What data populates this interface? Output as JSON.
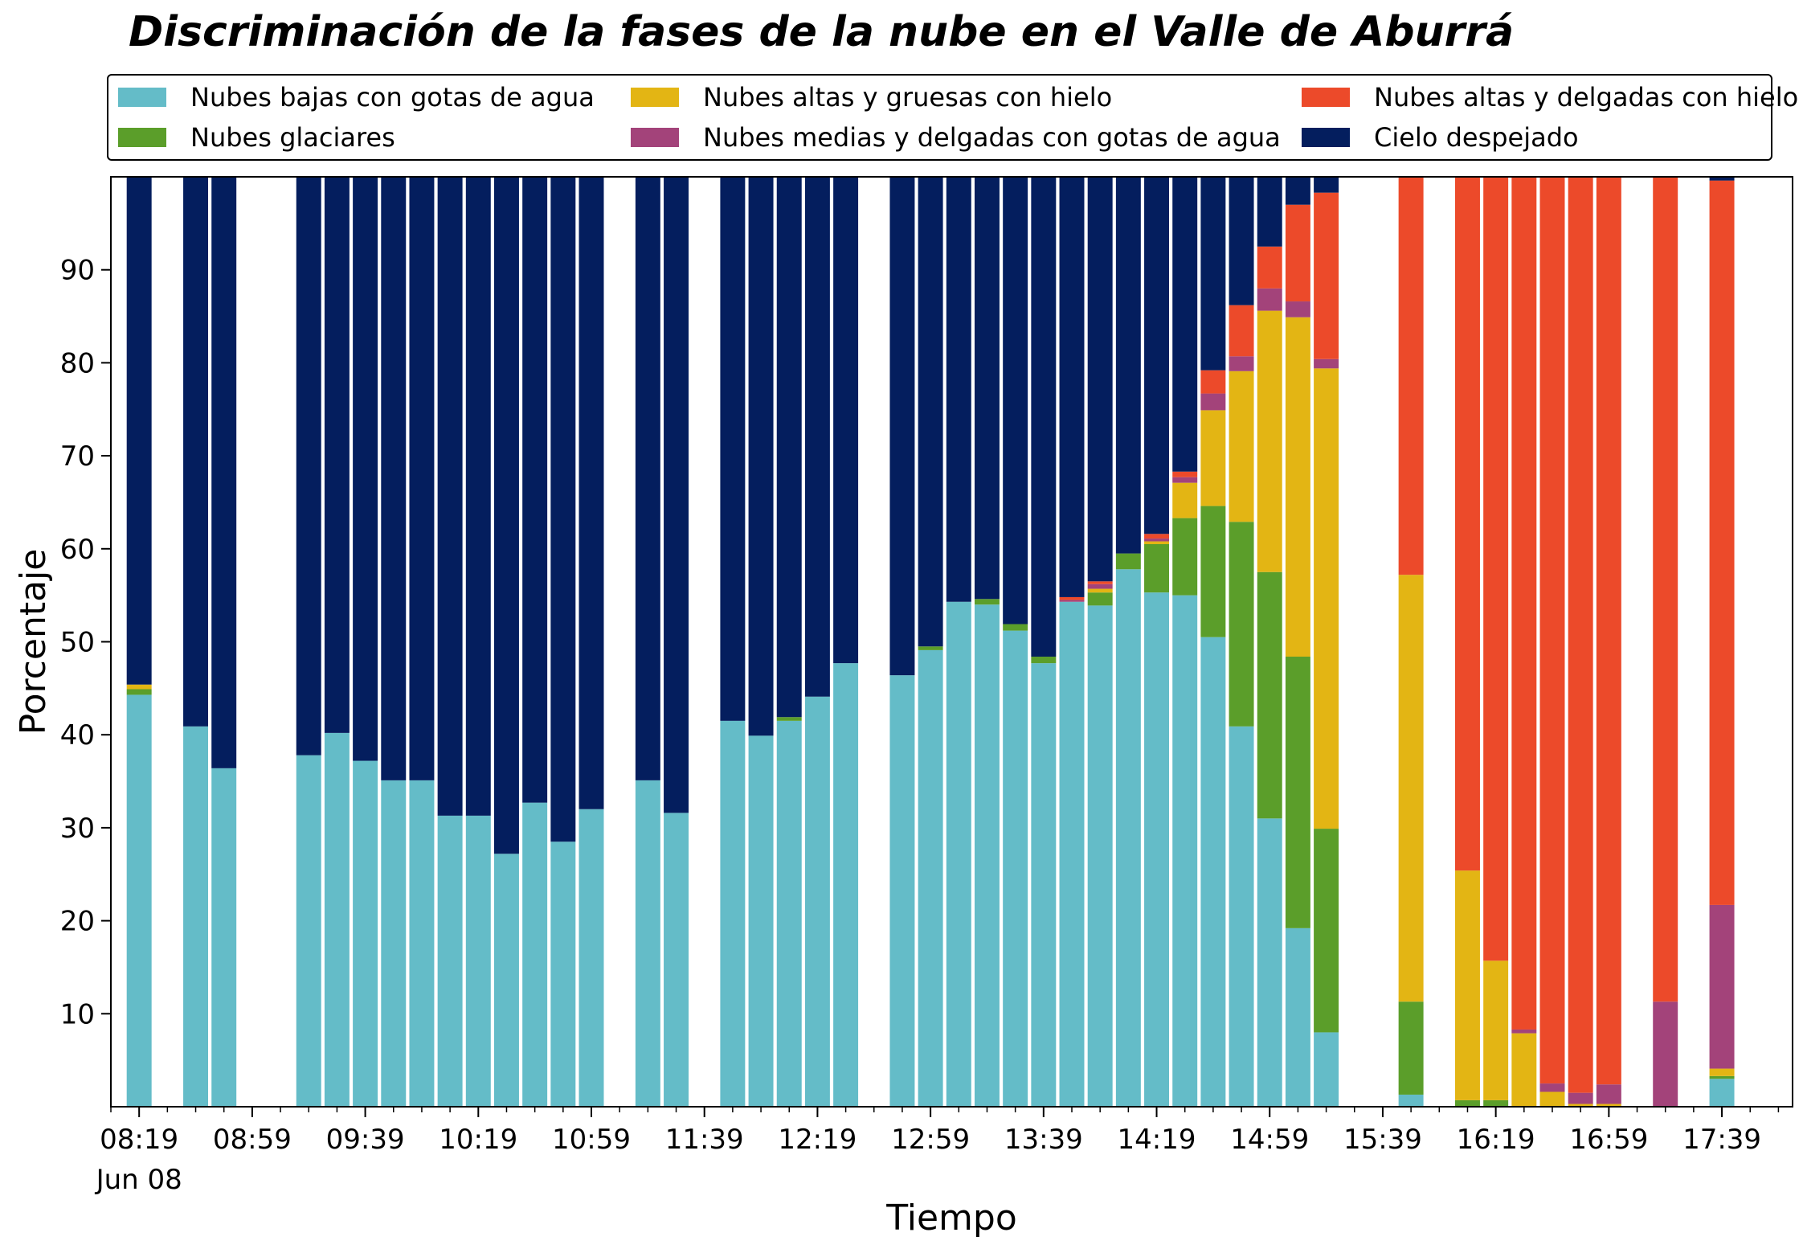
{
  "chart_data": {
    "type": "bar",
    "stacked": true,
    "title": "Discriminación de la fases de la nube en el Valle de Aburrá",
    "xlabel": "Tiempo",
    "ylabel": "Porcentaje",
    "ylim": [
      0,
      100
    ],
    "yticks": [
      10,
      20,
      30,
      40,
      50,
      60,
      70,
      80,
      90
    ],
    "xticks": [
      "08:19",
      "08:59",
      "09:39",
      "10:19",
      "10:59",
      "11:39",
      "12:19",
      "12:59",
      "13:39",
      "14:19",
      "14:59",
      "15:39",
      "16:19",
      "16:59",
      "17:39"
    ],
    "xtick_sublabel": "Jun 08",
    "x_start": "08:19",
    "x_end": "17:59",
    "x_interval_minutes": 10,
    "legend_position": "top",
    "grid": false,
    "series": [
      {
        "name": "Nubes bajas con gotas de agua",
        "color": "#64bcc8"
      },
      {
        "name": "Nubes glaciares",
        "color": "#5b9e2a"
      },
      {
        "name": "Nubes altas y gruesas con hielo",
        "color": "#e3b514"
      },
      {
        "name": "Nubes medias y delgadas con gotas de agua",
        "color": "#a3437a"
      },
      {
        "name": "Nubes altas y delgadas con hielo",
        "color": "#ec4a2a"
      },
      {
        "name": "Cielo despejado",
        "color": "#041e5e"
      }
    ],
    "bars": [
      {
        "x": "08:19",
        "values": [
          44.3,
          0.6,
          0.5,
          0,
          0,
          54.6
        ]
      },
      {
        "x": "08:39",
        "values": [
          40.9,
          0,
          0,
          0,
          0,
          59.1
        ]
      },
      {
        "x": "08:49",
        "values": [
          36.4,
          0,
          0,
          0,
          0,
          63.6
        ]
      },
      {
        "x": "09:19",
        "values": [
          37.8,
          0,
          0,
          0,
          0,
          62.2
        ]
      },
      {
        "x": "09:29",
        "values": [
          40.2,
          0,
          0,
          0,
          0,
          59.8
        ]
      },
      {
        "x": "09:39",
        "values": [
          37.2,
          0,
          0,
          0,
          0,
          62.8
        ]
      },
      {
        "x": "09:49",
        "values": [
          35.1,
          0,
          0,
          0,
          0,
          64.9
        ]
      },
      {
        "x": "09:59",
        "values": [
          35.1,
          0,
          0,
          0,
          0,
          64.9
        ]
      },
      {
        "x": "10:09",
        "values": [
          31.3,
          0,
          0,
          0,
          0,
          68.7
        ]
      },
      {
        "x": "10:19",
        "values": [
          31.3,
          0,
          0,
          0,
          0,
          68.7
        ]
      },
      {
        "x": "10:29",
        "values": [
          27.2,
          0,
          0,
          0,
          0,
          72.8
        ]
      },
      {
        "x": "10:39",
        "values": [
          32.7,
          0,
          0,
          0,
          0,
          67.3
        ]
      },
      {
        "x": "10:49",
        "values": [
          28.5,
          0,
          0,
          0,
          0,
          71.5
        ]
      },
      {
        "x": "10:59",
        "values": [
          32.0,
          0,
          0,
          0,
          0,
          68.0
        ]
      },
      {
        "x": "11:19",
        "values": [
          35.1,
          0,
          0,
          0,
          0,
          64.9
        ]
      },
      {
        "x": "11:29",
        "values": [
          31.6,
          0,
          0,
          0,
          0,
          68.4
        ]
      },
      {
        "x": "11:49",
        "values": [
          41.5,
          0,
          0,
          0,
          0,
          58.5
        ]
      },
      {
        "x": "11:59",
        "values": [
          39.9,
          0,
          0,
          0,
          0,
          60.1
        ]
      },
      {
        "x": "12:09",
        "values": [
          41.5,
          0.4,
          0,
          0,
          0,
          58.1
        ]
      },
      {
        "x": "12:19",
        "values": [
          44.1,
          0,
          0,
          0,
          0,
          55.9
        ]
      },
      {
        "x": "12:29",
        "values": [
          47.7,
          0,
          0,
          0,
          0,
          52.3
        ]
      },
      {
        "x": "12:49",
        "values": [
          46.4,
          0,
          0,
          0,
          0,
          53.6
        ]
      },
      {
        "x": "12:59",
        "values": [
          49.1,
          0.4,
          0,
          0,
          0,
          50.5
        ]
      },
      {
        "x": "13:09",
        "values": [
          54.3,
          0,
          0,
          0,
          0,
          45.7
        ]
      },
      {
        "x": "13:19",
        "values": [
          54.0,
          0.6,
          0,
          0,
          0,
          45.4
        ]
      },
      {
        "x": "13:29",
        "values": [
          51.2,
          0.7,
          0,
          0,
          0,
          48.1
        ]
      },
      {
        "x": "13:39",
        "values": [
          47.7,
          0.7,
          0,
          0,
          0,
          51.6
        ]
      },
      {
        "x": "13:49",
        "values": [
          54.3,
          0,
          0,
          0.2,
          0.3,
          45.2
        ]
      },
      {
        "x": "13:59",
        "values": [
          53.9,
          1.4,
          0.4,
          0.5,
          0.3,
          43.5
        ]
      },
      {
        "x": "14:09",
        "values": [
          57.8,
          1.7,
          0,
          0,
          0,
          40.5
        ]
      },
      {
        "x": "14:19",
        "values": [
          55.3,
          5.2,
          0.3,
          0.3,
          0.5,
          38.4
        ]
      },
      {
        "x": "14:29",
        "values": [
          55.0,
          8.3,
          3.8,
          0.6,
          0.6,
          31.7
        ]
      },
      {
        "x": "14:39",
        "values": [
          50.5,
          14.1,
          10.3,
          1.8,
          2.5,
          20.8
        ]
      },
      {
        "x": "14:49",
        "values": [
          40.9,
          22.0,
          16.2,
          1.6,
          5.5,
          13.8
        ]
      },
      {
        "x": "14:59",
        "values": [
          31.0,
          26.5,
          28.1,
          2.4,
          4.5,
          7.5
        ]
      },
      {
        "x": "15:09",
        "values": [
          19.2,
          29.2,
          36.5,
          1.7,
          10.4,
          3.0
        ]
      },
      {
        "x": "15:19",
        "values": [
          8.0,
          21.9,
          49.5,
          1.0,
          17.9,
          1.7
        ]
      },
      {
        "x": "15:49",
        "values": [
          1.3,
          10.0,
          45.9,
          0,
          42.8,
          0
        ]
      },
      {
        "x": "16:09",
        "values": [
          0,
          0.7,
          24.7,
          0,
          74.6,
          0
        ]
      },
      {
        "x": "16:19",
        "values": [
          0,
          0.7,
          15.0,
          0,
          84.3,
          0
        ]
      },
      {
        "x": "16:29",
        "values": [
          0,
          0,
          7.9,
          0.4,
          91.7,
          0
        ]
      },
      {
        "x": "16:39",
        "values": [
          0,
          0,
          1.6,
          0.9,
          97.5,
          0
        ]
      },
      {
        "x": "16:49",
        "values": [
          0,
          0,
          0.3,
          1.2,
          98.5,
          0
        ]
      },
      {
        "x": "16:59",
        "values": [
          0,
          0,
          0.3,
          2.1,
          97.6,
          0
        ]
      },
      {
        "x": "17:19",
        "values": [
          0,
          0,
          0,
          11.3,
          88.7,
          0
        ]
      },
      {
        "x": "17:39",
        "values": [
          3.0,
          0.3,
          0.8,
          17.6,
          77.9,
          0.4
        ]
      }
    ]
  }
}
